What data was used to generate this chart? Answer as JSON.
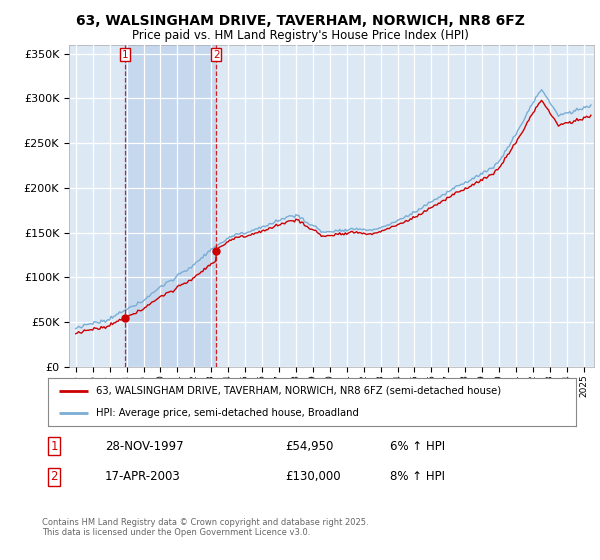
{
  "title": "63, WALSINGHAM DRIVE, TAVERHAM, NORWICH, NR8 6FZ",
  "subtitle": "Price paid vs. HM Land Registry's House Price Index (HPI)",
  "legend_line1": "63, WALSINGHAM DRIVE, TAVERHAM, NORWICH, NR8 6FZ (semi-detached house)",
  "legend_line2": "HPI: Average price, semi-detached house, Broadland",
  "footer": "Contains HM Land Registry data © Crown copyright and database right 2025.\nThis data is licensed under the Open Government Licence v3.0.",
  "transaction1_label": "1",
  "transaction1_date": "28-NOV-1997",
  "transaction1_price": "£54,950",
  "transaction1_hpi": "6% ↑ HPI",
  "transaction2_label": "2",
  "transaction2_date": "17-APR-2003",
  "transaction2_price": "£130,000",
  "transaction2_hpi": "8% ↑ HPI",
  "plot_bg_color": "#dce9f5",
  "shaded_region_color": "#c5d8ee",
  "red_line_color": "#cc0000",
  "blue_line_color": "#7aadd4",
  "dashed_line_color": "#cc0000",
  "ylim": [
    0,
    360000
  ],
  "yticks": [
    0,
    50000,
    100000,
    150000,
    200000,
    250000,
    300000,
    350000
  ],
  "ytick_labels": [
    "£0",
    "£50K",
    "£100K",
    "£150K",
    "£200K",
    "£250K",
    "£300K",
    "£350K"
  ],
  "xlim_start": 1994.6,
  "xlim_end": 2025.6,
  "transaction1_x": 1997.91,
  "transaction2_x": 2003.29,
  "price1": 54950,
  "price2": 130000,
  "figsize": [
    6.0,
    5.6
  ],
  "dpi": 100
}
